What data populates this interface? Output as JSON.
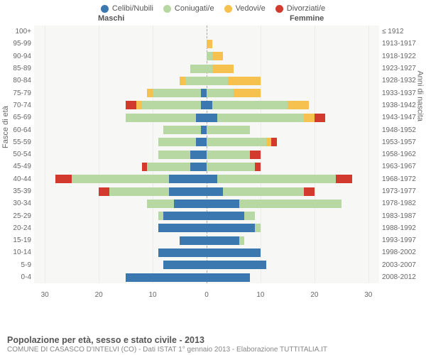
{
  "legend": [
    {
      "label": "Celibi/Nubili",
      "color": "#3b78b0"
    },
    {
      "label": "Coniugati/e",
      "color": "#b7d7a3"
    },
    {
      "label": "Vedovi/e",
      "color": "#f6c14e"
    },
    {
      "label": "Divorziati/e",
      "color": "#d23a2e"
    }
  ],
  "header_male": "Maschi",
  "header_female": "Femmine",
  "axis_left_title": "Fasce di età",
  "axis_right_title": "Anni di nascita",
  "x_ticks": [
    30,
    20,
    10,
    0,
    10,
    20,
    30
  ],
  "x_max": 32,
  "chart": {
    "background": "#f7f7f5",
    "grid_color": "#ececec"
  },
  "rows": [
    {
      "age": "100+",
      "year": "≤ 1912",
      "m": [
        0,
        0,
        0,
        0
      ],
      "f": [
        0,
        0,
        0,
        0
      ]
    },
    {
      "age": "95-99",
      "year": "1913-1917",
      "m": [
        0,
        0,
        0,
        0
      ],
      "f": [
        0,
        0,
        1,
        0
      ]
    },
    {
      "age": "90-94",
      "year": "1918-1922",
      "m": [
        0,
        0,
        0,
        0
      ],
      "f": [
        0,
        1,
        2,
        0
      ]
    },
    {
      "age": "85-89",
      "year": "1923-1927",
      "m": [
        0,
        3,
        0,
        0
      ],
      "f": [
        0,
        1,
        4,
        0
      ]
    },
    {
      "age": "80-84",
      "year": "1928-1932",
      "m": [
        0,
        4,
        1,
        0
      ],
      "f": [
        0,
        4,
        6,
        0
      ]
    },
    {
      "age": "75-79",
      "year": "1933-1937",
      "m": [
        1,
        9,
        1,
        0
      ],
      "f": [
        0,
        5,
        5,
        0
      ]
    },
    {
      "age": "70-74",
      "year": "1938-1942",
      "m": [
        1,
        11,
        1,
        2
      ],
      "f": [
        1,
        14,
        4,
        0
      ]
    },
    {
      "age": "65-69",
      "year": "1943-1947",
      "m": [
        2,
        13,
        0,
        0
      ],
      "f": [
        2,
        16,
        2,
        2
      ]
    },
    {
      "age": "60-64",
      "year": "1948-1952",
      "m": [
        1,
        7,
        0,
        0
      ],
      "f": [
        0,
        8,
        0,
        0
      ]
    },
    {
      "age": "55-59",
      "year": "1953-1957",
      "m": [
        2,
        7,
        0,
        0
      ],
      "f": [
        0,
        11,
        1,
        1
      ]
    },
    {
      "age": "50-54",
      "year": "1958-1962",
      "m": [
        3,
        6,
        0,
        0
      ],
      "f": [
        0,
        8,
        0,
        2
      ]
    },
    {
      "age": "45-49",
      "year": "1963-1967",
      "m": [
        3,
        8,
        0,
        1
      ],
      "f": [
        0,
        9,
        0,
        1
      ]
    },
    {
      "age": "40-44",
      "year": "1968-1972",
      "m": [
        7,
        18,
        0,
        3
      ],
      "f": [
        2,
        22,
        0,
        3
      ]
    },
    {
      "age": "35-39",
      "year": "1973-1977",
      "m": [
        7,
        11,
        0,
        2
      ],
      "f": [
        3,
        15,
        0,
        2
      ]
    },
    {
      "age": "30-34",
      "year": "1978-1982",
      "m": [
        6,
        5,
        0,
        0
      ],
      "f": [
        6,
        19,
        0,
        0
      ]
    },
    {
      "age": "25-29",
      "year": "1983-1987",
      "m": [
        8,
        1,
        0,
        0
      ],
      "f": [
        7,
        2,
        0,
        0
      ]
    },
    {
      "age": "20-24",
      "year": "1988-1992",
      "m": [
        9,
        0,
        0,
        0
      ],
      "f": [
        9,
        1,
        0,
        0
      ]
    },
    {
      "age": "15-19",
      "year": "1993-1997",
      "m": [
        5,
        0,
        0,
        0
      ],
      "f": [
        6,
        1,
        0,
        0
      ]
    },
    {
      "age": "10-14",
      "year": "1998-2002",
      "m": [
        9,
        0,
        0,
        0
      ],
      "f": [
        10,
        0,
        0,
        0
      ]
    },
    {
      "age": "5-9",
      "year": "2003-2007",
      "m": [
        8,
        0,
        0,
        0
      ],
      "f": [
        11,
        0,
        0,
        0
      ]
    },
    {
      "age": "0-4",
      "year": "2008-2012",
      "m": [
        15,
        0,
        0,
        0
      ],
      "f": [
        8,
        0,
        0,
        0
      ]
    }
  ],
  "title": "Popolazione per età, sesso e stato civile - 2013",
  "subtitle": "COMUNE DI CASASCO D'INTELVI (CO) - Dati ISTAT 1° gennaio 2013 - Elaborazione TUTTITALIA.IT"
}
